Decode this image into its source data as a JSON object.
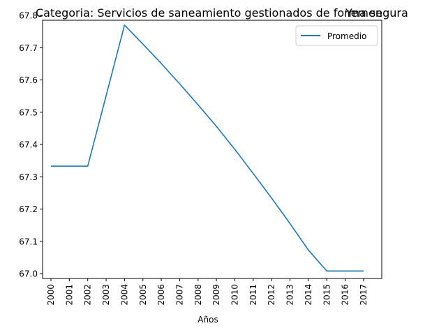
{
  "chart_data": {
    "type": "line",
    "title_left": "Categoria: Servicios de saneamiento gestionados de forma segura",
    "title_right": "Yemen",
    "xlabel": "Años",
    "ylabel": "",
    "x": [
      "2000",
      "2001",
      "2002",
      "2003",
      "2004",
      "2005",
      "2006",
      "2007",
      "2008",
      "2009",
      "2010",
      "2011",
      "2012",
      "2013",
      "2014",
      "2015",
      "2016",
      "2017"
    ],
    "yticks": [
      "67.0",
      "67.1",
      "67.2",
      "67.3",
      "67.4",
      "67.5",
      "67.6",
      "67.7",
      "67.8"
    ],
    "ylim": [
      66.985,
      67.785
    ],
    "series": [
      {
        "name": "Promedio",
        "color": "#1f77b4",
        "values": [
          67.333,
          67.333,
          67.333,
          67.551,
          67.77,
          67.711,
          67.651,
          67.588,
          67.523,
          67.456,
          67.385,
          67.31,
          67.234,
          67.155,
          67.073,
          67.008,
          67.008,
          67.008
        ]
      }
    ],
    "legend_position": "top-right",
    "grid": false
  }
}
